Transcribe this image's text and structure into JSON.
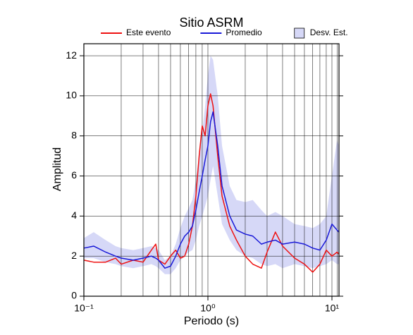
{
  "chart_data": {
    "type": "line",
    "title": "Sitio ASRM",
    "xlabel": "Periodo (s)",
    "ylabel": "Amplitud",
    "xscale": "log",
    "xlim": [
      0.1,
      11.4
    ],
    "ylim": [
      0,
      12.6
    ],
    "xticks": [
      {
        "value": 0.1,
        "label": "10⁻¹"
      },
      {
        "value": 1,
        "label": "10⁰"
      },
      {
        "value": 10,
        "label": "10¹"
      }
    ],
    "xminorticks": [
      0.2,
      0.3,
      0.4,
      0.5,
      0.6,
      0.7,
      0.8,
      0.9,
      2,
      3,
      4,
      5,
      6,
      7,
      8,
      9,
      11
    ],
    "yticks": [
      0,
      2,
      4,
      6,
      8,
      10,
      12
    ],
    "grid": true,
    "legend": "top",
    "x": [
      0.1,
      0.12,
      0.15,
      0.18,
      0.2,
      0.25,
      0.3,
      0.35,
      0.38,
      0.4,
      0.45,
      0.5,
      0.55,
      0.6,
      0.65,
      0.7,
      0.75,
      0.8,
      0.85,
      0.9,
      0.95,
      1.0,
      1.05,
      1.1,
      1.2,
      1.3,
      1.5,
      1.7,
      2.0,
      2.3,
      2.7,
      3.0,
      3.5,
      4.0,
      5.0,
      6.0,
      7.0,
      8.0,
      9.0,
      10.0,
      11.0,
      11.4
    ],
    "band": {
      "name": "Desv. Est.",
      "color": "#d6d8f7",
      "upper": [
        2.9,
        3.2,
        2.8,
        2.5,
        2.4,
        2.3,
        2.4,
        2.5,
        2.4,
        2.3,
        1.8,
        2.0,
        2.6,
        3.4,
        4.0,
        4.4,
        4.8,
        5.8,
        7.0,
        8.2,
        9.5,
        11.0,
        12.0,
        11.8,
        10.0,
        7.5,
        5.5,
        4.8,
        4.7,
        4.8,
        4.3,
        4.0,
        4.2,
        4.0,
        3.6,
        3.5,
        3.4,
        3.6,
        4.0,
        6.0,
        7.8,
        7.5
      ],
      "lower": [
        1.9,
        1.9,
        1.7,
        1.6,
        1.5,
        1.4,
        1.5,
        1.6,
        1.5,
        1.4,
        1.1,
        1.1,
        1.4,
        1.8,
        2.0,
        2.2,
        2.3,
        2.8,
        3.5,
        4.0,
        4.5,
        5.0,
        5.8,
        6.5,
        5.0,
        3.6,
        2.8,
        2.3,
        2.0,
        1.9,
        1.6,
        1.5,
        1.6,
        1.4,
        1.6,
        1.5,
        1.4,
        1.5,
        1.6,
        1.8,
        1.6,
        1.6
      ]
    },
    "series": [
      {
        "name": "Este evento",
        "color": "#ee1111",
        "values": [
          1.8,
          1.7,
          1.7,
          1.9,
          1.6,
          1.8,
          1.7,
          2.3,
          2.6,
          1.8,
          1.6,
          2.0,
          2.3,
          1.9,
          2.0,
          2.6,
          3.5,
          5.0,
          7.0,
          8.5,
          8.0,
          9.5,
          10.1,
          9.5,
          7.0,
          5.0,
          3.5,
          2.8,
          2.0,
          1.6,
          1.4,
          2.2,
          3.2,
          2.5,
          1.9,
          1.6,
          1.2,
          1.6,
          2.3,
          2.0,
          2.2,
          2.1
        ]
      },
      {
        "name": "Promedio",
        "color": "#1a1ad8",
        "values": [
          2.4,
          2.5,
          2.2,
          2.0,
          1.9,
          1.8,
          1.9,
          2.0,
          1.9,
          1.8,
          1.4,
          1.5,
          2.0,
          2.6,
          3.0,
          3.2,
          3.5,
          4.3,
          5.2,
          6.0,
          6.8,
          7.5,
          8.7,
          9.2,
          7.5,
          5.5,
          4.0,
          3.3,
          3.1,
          3.0,
          2.6,
          2.7,
          2.8,
          2.6,
          2.7,
          2.6,
          2.4,
          2.3,
          2.8,
          3.6,
          3.3,
          3.2
        ]
      }
    ]
  }
}
